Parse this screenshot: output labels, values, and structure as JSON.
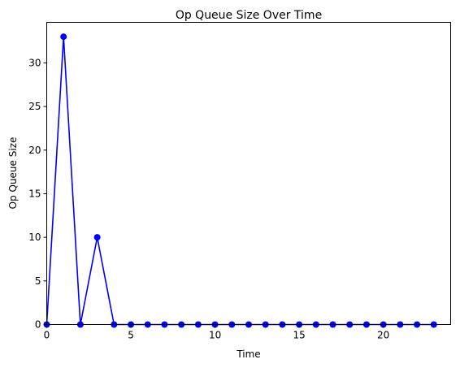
{
  "chart_data": {
    "type": "line",
    "title": "Op Queue Size Over Time",
    "xlabel": "Time",
    "ylabel": "Op Queue Size",
    "xlim": [
      0,
      24
    ],
    "ylim": [
      0,
      34.65
    ],
    "xticks": [
      0,
      5,
      10,
      15,
      20
    ],
    "yticks": [
      0,
      5,
      10,
      15,
      20,
      25,
      30
    ],
    "grid": false,
    "series": [
      {
        "color": "#0000ff",
        "marker": "circle",
        "x": [
          0,
          1,
          2,
          3,
          4,
          5,
          6,
          7,
          8,
          9,
          10,
          11,
          12,
          13,
          14,
          15,
          16,
          17,
          18,
          19,
          20,
          21,
          22,
          23
        ],
        "y": [
          0,
          33,
          0,
          10,
          0,
          0,
          0,
          0,
          0,
          0,
          0,
          0,
          0,
          0,
          0,
          0,
          0,
          0,
          0,
          0,
          0,
          0,
          0,
          0
        ]
      }
    ]
  }
}
